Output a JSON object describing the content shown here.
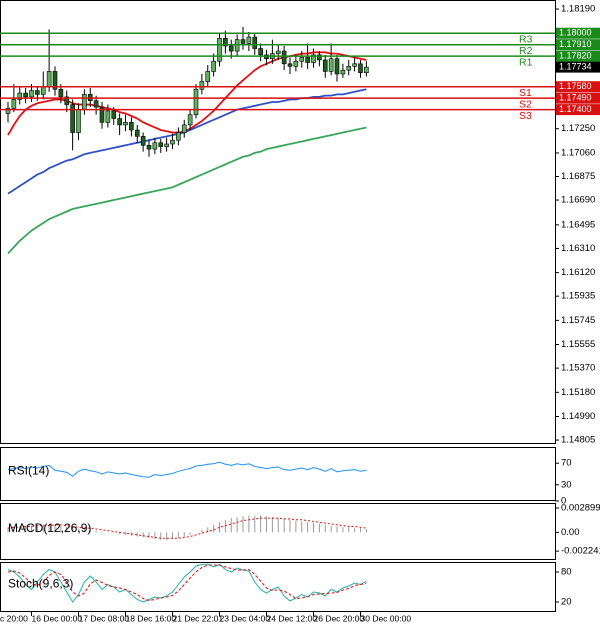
{
  "chart_data": [
    {
      "type": "candlestick",
      "xticks": [
        {
          "value": -4,
          "label": "c 20:00"
        },
        {
          "value": 4,
          "label": "16 Dec 00:00"
        },
        {
          "value": 12,
          "label": "17 Dec 08:00"
        },
        {
          "value": 20,
          "label": "18 Dec 16:00"
        },
        {
          "value": 28,
          "label": "21 Dec 22:01"
        },
        {
          "value": 36,
          "label": "23 Dec 04:00"
        },
        {
          "value": 44,
          "label": "24 Dec 12:00"
        },
        {
          "value": 52,
          "label": "26 Dec 20:00"
        },
        {
          "value": 60,
          "label": "30 Dec 00:00"
        }
      ],
      "open": [
        1.1737,
        1.1741,
        1.1748,
        1.1753,
        1.175,
        1.1755,
        1.1752,
        1.1758,
        1.177,
        1.1756,
        1.175,
        1.1744,
        1.1722,
        1.174,
        1.1752,
        1.1747,
        1.1742,
        1.173,
        1.1739,
        1.1733,
        1.1728,
        1.173,
        1.1724,
        1.1719,
        1.1712,
        1.1709,
        1.1714,
        1.1711,
        1.1713,
        1.1716,
        1.1722,
        1.1728,
        1.1736,
        1.1756,
        1.1762,
        1.177,
        1.1778,
        1.1796,
        1.179,
        1.1786,
        1.1795,
        1.1792,
        1.1797,
        1.1788,
        1.1783,
        1.178,
        1.1784,
        1.1786,
        1.1776,
        1.1774,
        1.1778,
        1.1781,
        1.1777,
        1.1783,
        1.1779,
        1.177,
        1.178,
        1.1768,
        1.1771,
        1.1774,
        1.1776,
        1.1769
      ],
      "high": [
        1.1746,
        1.176,
        1.1758,
        1.1757,
        1.176,
        1.1758,
        1.177,
        1.1803,
        1.1774,
        1.176,
        1.1755,
        1.1748,
        1.1745,
        1.1756,
        1.1757,
        1.1751,
        1.1746,
        1.1744,
        1.1742,
        1.1737,
        1.1736,
        1.1734,
        1.1728,
        1.1722,
        1.1716,
        1.1718,
        1.1717,
        1.1718,
        1.1721,
        1.1726,
        1.1732,
        1.174,
        1.176,
        1.1768,
        1.1775,
        1.1784,
        1.18,
        1.1802,
        1.1795,
        1.1799,
        1.1805,
        1.1801,
        1.18,
        1.1792,
        1.1787,
        1.1795,
        1.1791,
        1.179,
        1.1781,
        1.1783,
        1.1786,
        1.1792,
        1.1788,
        1.1786,
        1.1783,
        1.1792,
        1.1783,
        1.1776,
        1.1779,
        1.1781,
        1.1779,
        1.1778
      ],
      "low": [
        1.173,
        1.1738,
        1.1744,
        1.1745,
        1.1746,
        1.1747,
        1.1748,
        1.1754,
        1.1751,
        1.1745,
        1.1738,
        1.1708,
        1.1716,
        1.1736,
        1.1742,
        1.1736,
        1.1725,
        1.1726,
        1.1728,
        1.172,
        1.1723,
        1.1719,
        1.1714,
        1.1707,
        1.1703,
        1.1705,
        1.1706,
        1.1707,
        1.1709,
        1.1712,
        1.1718,
        1.1724,
        1.1733,
        1.1752,
        1.1758,
        1.1766,
        1.1774,
        1.1784,
        1.178,
        1.1782,
        1.1787,
        1.1786,
        1.1783,
        1.1778,
        1.1775,
        1.1776,
        1.1779,
        1.1771,
        1.1768,
        1.177,
        1.1773,
        1.1772,
        1.1773,
        1.1774,
        1.1765,
        1.1767,
        1.1762,
        1.1765,
        1.1767,
        1.177,
        1.1765,
        1.1766
      ],
      "close": [
        1.1741,
        1.1748,
        1.1753,
        1.175,
        1.1755,
        1.1752,
        1.1758,
        1.177,
        1.1756,
        1.175,
        1.1744,
        1.1722,
        1.174,
        1.1752,
        1.1747,
        1.1742,
        1.173,
        1.1739,
        1.1733,
        1.1728,
        1.173,
        1.1724,
        1.1719,
        1.1712,
        1.1709,
        1.1714,
        1.1711,
        1.1713,
        1.1716,
        1.1722,
        1.1728,
        1.1736,
        1.1756,
        1.1762,
        1.177,
        1.1778,
        1.1796,
        1.179,
        1.1786,
        1.1795,
        1.1792,
        1.1797,
        1.1788,
        1.1783,
        1.178,
        1.1784,
        1.1786,
        1.1776,
        1.1774,
        1.1778,
        1.1781,
        1.1777,
        1.1783,
        1.1779,
        1.177,
        1.178,
        1.1768,
        1.1771,
        1.1774,
        1.1776,
        1.1769,
        1.17734
      ],
      "up_color": "#5fb35f",
      "down_color": "#1d5e1d",
      "lines": [
        {
          "color": "#e01010",
          "values": [
            1.172,
            1.1728,
            1.1735,
            1.174,
            1.1743,
            1.1745,
            1.1746,
            1.1747,
            1.1748,
            1.1748,
            1.1747,
            1.1745,
            1.1744,
            1.1744,
            1.1744,
            1.1743,
            1.1742,
            1.1741,
            1.174,
            1.1738,
            1.1737,
            1.1735,
            1.1733,
            1.173,
            1.1728,
            1.1726,
            1.1724,
            1.1723,
            1.1722,
            1.1722,
            1.1723,
            1.1725,
            1.1728,
            1.1731,
            1.1735,
            1.1739,
            1.1744,
            1.1749,
            1.1754,
            1.1759,
            1.1763,
            1.1767,
            1.1771,
            1.1774,
            1.1776,
            1.1778,
            1.178,
            1.1781,
            1.1782,
            1.1783,
            1.1784,
            1.1784,
            1.1785,
            1.1785,
            1.1785,
            1.1784,
            1.1784,
            1.1783,
            1.1782,
            1.1781,
            1.178,
            1.1779
          ]
        },
        {
          "color": "#3050c8",
          "values": [
            1.1674,
            1.1677,
            1.168,
            1.1683,
            1.1686,
            1.1689,
            1.1691,
            1.1694,
            1.1696,
            1.1698,
            1.17,
            1.1701,
            1.1703,
            1.1705,
            1.1706,
            1.1707,
            1.1708,
            1.1709,
            1.171,
            1.1711,
            1.1712,
            1.1713,
            1.1714,
            1.1715,
            1.1716,
            1.1717,
            1.1718,
            1.1719,
            1.172,
            1.1721,
            1.1722,
            1.1724,
            1.1726,
            1.1728,
            1.173,
            1.1732,
            1.1734,
            1.1736,
            1.1738,
            1.174,
            1.1741,
            1.1742,
            1.1743,
            1.1744,
            1.1745,
            1.1746,
            1.1746,
            1.1747,
            1.1748,
            1.1748,
            1.1749,
            1.1749,
            1.175,
            1.175,
            1.1751,
            1.1751,
            1.1752,
            1.1752,
            1.1753,
            1.1754,
            1.1755,
            1.1756
          ]
        },
        {
          "color": "#3aa55a",
          "values": [
            1.1627,
            1.1632,
            1.1637,
            1.1641,
            1.1645,
            1.1648,
            1.1651,
            1.1654,
            1.1656,
            1.1658,
            1.166,
            1.1662,
            1.1663,
            1.1664,
            1.1665,
            1.1666,
            1.1667,
            1.1668,
            1.1669,
            1.167,
            1.1671,
            1.1672,
            1.1673,
            1.1674,
            1.1675,
            1.1676,
            1.1677,
            1.1678,
            1.1679,
            1.1681,
            1.1683,
            1.1685,
            1.1687,
            1.1689,
            1.1691,
            1.1693,
            1.1695,
            1.1697,
            1.1699,
            1.1701,
            1.1703,
            1.1704,
            1.1706,
            1.1707,
            1.1709,
            1.171,
            1.1711,
            1.1712,
            1.1713,
            1.1714,
            1.1715,
            1.1716,
            1.1717,
            1.1718,
            1.1719,
            1.172,
            1.1721,
            1.1722,
            1.1723,
            1.1724,
            1.1725,
            1.1726
          ]
        }
      ],
      "levels": [
        {
          "name": "R3",
          "value": 1.18,
          "value_label": "1.18000",
          "color": "#1a8a1a"
        },
        {
          "name": "R2",
          "value": 1.1791,
          "value_label": "1.17910",
          "color": "#1a8a1a"
        },
        {
          "name": "R1",
          "value": 1.1782,
          "value_label": "1.17820",
          "color": "#1a8a1a"
        },
        {
          "name": "S1",
          "value": 1.1758,
          "value_label": "1.17580",
          "color": "#d81010"
        },
        {
          "name": "S2",
          "value": 1.1749,
          "value_label": "1.17490",
          "color": "#d81010"
        },
        {
          "name": "S3",
          "value": 1.174,
          "value_label": "1.17400",
          "color": "#d81010"
        }
      ],
      "ylim": [
        1.14774,
        1.18261
      ],
      "yticks": [
        {
          "value": 1.1819,
          "label": "1.18190"
        },
        {
          "value": 1.1725,
          "label": "1.17250"
        },
        {
          "value": 1.1706,
          "label": "1.17060"
        },
        1.16875,
        {
          "value": 1.1669,
          "label": "1.16690"
        },
        1.16495,
        {
          "value": 1.1631,
          "label": "1.16310"
        },
        {
          "value": 1.1612,
          "label": "1.16120"
        },
        1.15935,
        1.15745,
        1.15555,
        {
          "value": 1.1537,
          "label": "1.15370"
        },
        {
          "value": 1.1518,
          "label": "1.15180"
        },
        {
          "value": 1.1499,
          "label": "1.14990"
        },
        1.14805
      ]
    },
    {
      "type": "line",
      "label": "RSI(14)",
      "ylim": [
        0,
        100
      ],
      "yticks": [
        70,
        30,
        0
      ],
      "series": [
        {
          "color": "#1e90ff",
          "values": [
            58,
            60,
            62,
            60,
            63,
            61,
            64,
            66,
            57,
            55,
            53,
            46,
            55,
            59,
            56,
            54,
            50,
            54,
            52,
            50,
            52,
            49,
            47,
            45,
            44,
            49,
            47,
            49,
            51,
            55,
            58,
            60,
            65,
            66,
            68,
            69,
            72,
            68,
            66,
            69,
            67,
            69,
            64,
            62,
            60,
            62,
            63,
            58,
            57,
            59,
            61,
            58,
            62,
            59,
            55,
            60,
            54,
            56,
            57,
            58,
            55,
            57
          ]
        }
      ]
    },
    {
      "type": "macd",
      "label": "MACD(12,26,9)",
      "ylim": [
        -0.0033,
        0.0035
      ],
      "yticks": [
        0.002899,
        {
          "value": 0,
          "label": "0.00"
        },
        -0.002241
      ],
      "histogram_color": "#9a9a9a",
      "signal_color": "#e01010",
      "histogram": [
        0.0006,
        0.0007,
        0.0007,
        0.0008,
        0.0008,
        0.0008,
        0.0009,
        0.0009,
        0.0009,
        0.0008,
        0.0007,
        0.0005,
        0.0004,
        0.0004,
        0.0003,
        0.0002,
        0.0001,
        0,
        -0.0001,
        -0.0002,
        -0.0003,
        -0.0004,
        -0.0005,
        -0.0006,
        -0.0007,
        -0.0008,
        -0.0009,
        -0.0009,
        -0.0008,
        -0.0007,
        -0.0005,
        -0.0003,
        0,
        0.0003,
        0.0006,
        0.0009,
        0.0012,
        0.0015,
        0.0017,
        0.0018,
        0.0019,
        0.002,
        0.002,
        0.002,
        0.0019,
        0.0018,
        0.0017,
        0.0016,
        0.0015,
        0.0014,
        0.0013,
        0.0012,
        0.0011,
        0.001,
        0.0009,
        0.0008,
        0.0007,
        0.0006,
        0.0006,
        0.0005,
        0.0005,
        0.0004
      ],
      "signal": [
        0.0005,
        0.0006,
        0.0006,
        0.0007,
        0.0007,
        0.0008,
        0.0008,
        0.0008,
        0.0009,
        0.0009,
        0.0008,
        0.0007,
        0.0006,
        0.0005,
        0.0005,
        0.0004,
        0.0003,
        0.0002,
        0.0001,
        0,
        -0.0001,
        -0.0002,
        -0.0003,
        -0.0004,
        -0.0005,
        -0.0006,
        -0.0007,
        -0.0007,
        -0.0007,
        -0.0007,
        -0.0006,
        -0.0005,
        -0.0003,
        -0.0001,
        0.0001,
        0.0003,
        0.0006,
        0.0008,
        0.001,
        0.0012,
        0.0014,
        0.0015,
        0.0016,
        0.0017,
        0.0017,
        0.0017,
        0.0017,
        0.0016,
        0.0016,
        0.0015,
        0.0015,
        0.0014,
        0.0013,
        0.0012,
        0.0011,
        0.001,
        0.0009,
        0.0008,
        0.0007,
        0.0007,
        0.0006,
        0.0005
      ]
    },
    {
      "type": "line",
      "label": "Stoch(9,6,3)",
      "ylim": [
        0,
        100
      ],
      "yticks": [
        80,
        20
      ],
      "series": [
        {
          "color": "#20b2aa",
          "dashed": false,
          "values": [
            85,
            80,
            70,
            55,
            45,
            60,
            75,
            85,
            80,
            60,
            40,
            20,
            35,
            60,
            72,
            60,
            45,
            55,
            50,
            40,
            45,
            35,
            25,
            20,
            25,
            30,
            28,
            32,
            40,
            55,
            70,
            80,
            92,
            95,
            96,
            90,
            95,
            85,
            80,
            88,
            84,
            82,
            60,
            45,
            38,
            45,
            50,
            32,
            22,
            28,
            35,
            30,
            40,
            38,
            32,
            45,
            40,
            48,
            52,
            58,
            55,
            62
          ]
        },
        {
          "color": "#e01010",
          "dashed": true,
          "values": [
            80,
            82,
            78,
            68,
            57,
            53,
            60,
            73,
            80,
            75,
            60,
            40,
            32,
            38,
            56,
            64,
            59,
            53,
            50,
            48,
            45,
            40,
            35,
            27,
            23,
            25,
            28,
            30,
            33,
            42,
            55,
            68,
            80,
            89,
            94,
            94,
            94,
            90,
            87,
            84,
            84,
            85,
            75,
            62,
            48,
            43,
            44,
            42,
            35,
            27,
            28,
            31,
            35,
            36,
            37,
            38,
            39,
            44,
            47,
            53,
            55,
            58
          ]
        }
      ]
    }
  ]
}
